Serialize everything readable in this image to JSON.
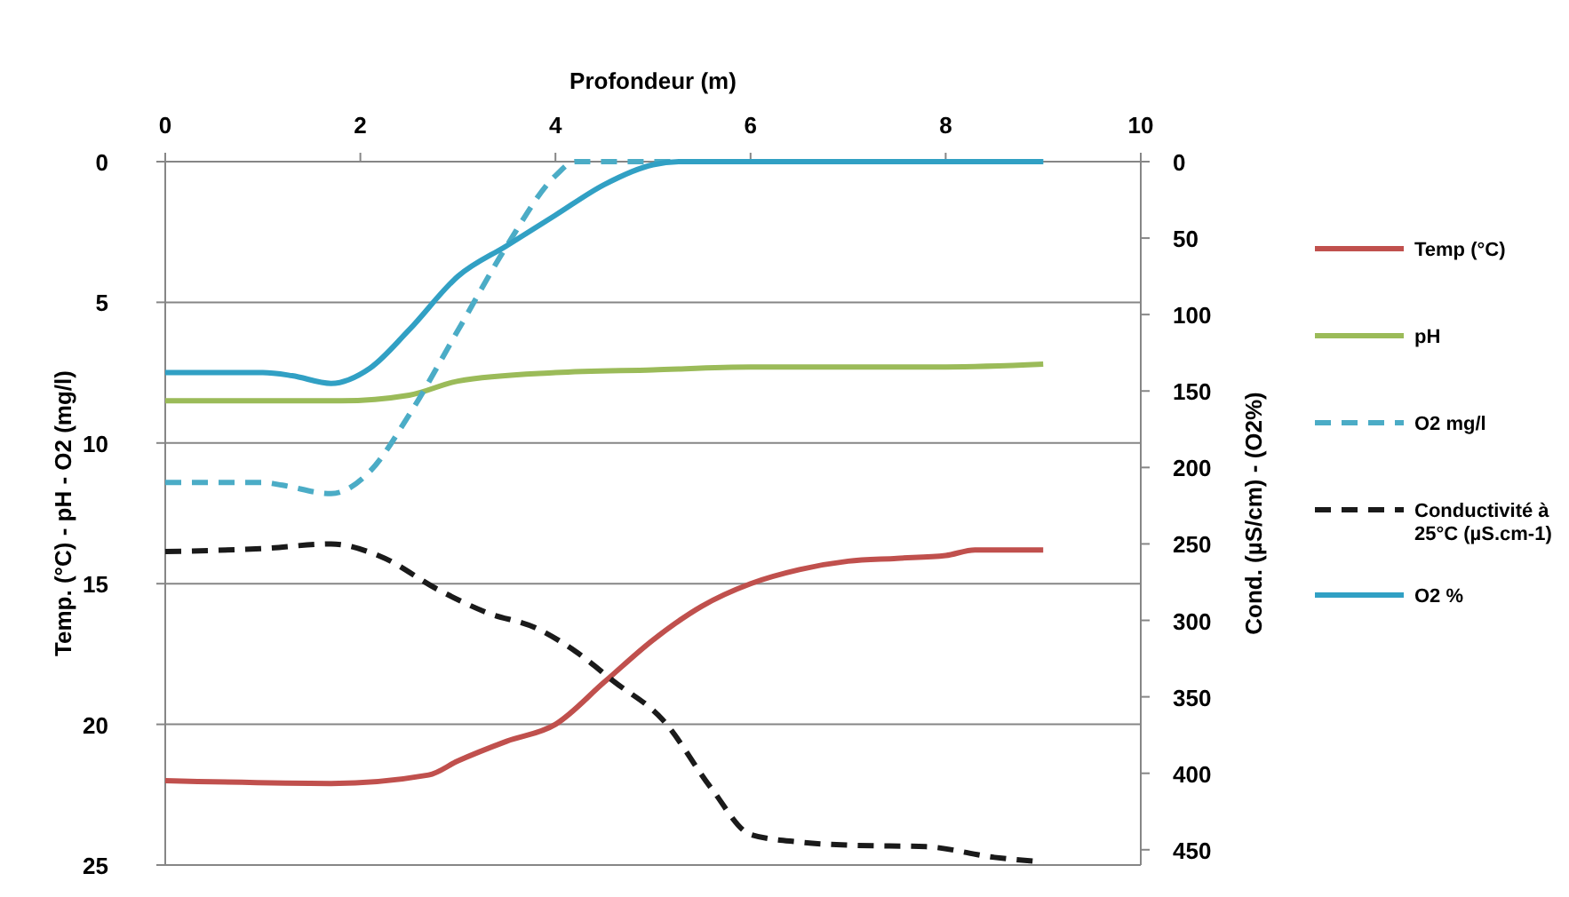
{
  "chart_data": {
    "type": "line",
    "xlabel": "Profondeur (m)",
    "ylabel": "Temp. (°C) - pH - O2 (mg/l)",
    "y2label": "Cond. (µS/cm) - (O2%)",
    "xlim": [
      0,
      10
    ],
    "xticks": [
      0,
      2,
      4,
      6,
      8,
      10
    ],
    "ylim": [
      25,
      0
    ],
    "yticks": [
      0,
      5,
      10,
      15,
      20,
      25
    ],
    "y2lim": [
      460,
      0
    ],
    "y2ticks": [
      0,
      50,
      100,
      150,
      200,
      250,
      300,
      350,
      400,
      450
    ],
    "grid": "y",
    "legend": "right",
    "marker": "none",
    "series": [
      {
        "name": "Temp (°C)",
        "color": "#c0504d",
        "line_style": "solid",
        "x": [
          0,
          1.7,
          2.7,
          3,
          3.5,
          4,
          4.5,
          5,
          5.5,
          6,
          6.5,
          7,
          7.5,
          8,
          8.3,
          9
        ],
        "values": [
          22,
          22.1,
          21.8,
          21.3,
          20.6,
          20,
          18.5,
          17,
          15.8,
          15,
          14.5,
          14.2,
          14.1,
          14,
          13.8,
          13.8
        ]
      },
      {
        "name": "pH",
        "color": "#9bbb59",
        "line_style": "solid",
        "x": [
          0,
          1.8,
          2.5,
          3,
          4,
          5,
          6,
          7,
          8,
          9
        ],
        "values": [
          8.5,
          8.5,
          8.3,
          7.8,
          7.5,
          7.4,
          7.3,
          7.3,
          7.3,
          7.2
        ]
      },
      {
        "name": "O2 mg/l",
        "color": "#4bacc6",
        "line_style": "dashed",
        "x": [
          0,
          1,
          1.2,
          1.7,
          2.1,
          2.5,
          3,
          3.5,
          4,
          4.2,
          5,
          6,
          7,
          8,
          9
        ],
        "values": [
          11.4,
          11.4,
          11.5,
          11.8,
          11,
          9,
          6,
          3,
          0.5,
          0,
          0,
          0,
          0,
          0,
          0
        ]
      },
      {
        "name": "Conductivité à 25°C (µS.cm-1)",
        "color": "#1a1a1a",
        "line_style": "dashed",
        "axis": "y2",
        "x": [
          0,
          1,
          1.7,
          2.2,
          2.8,
          3.3,
          3.8,
          4.2,
          4.6,
          5.1,
          5.6,
          6,
          6.5,
          7,
          7.8,
          8.5,
          9
        ],
        "values": [
          255,
          253,
          250,
          258,
          280,
          295,
          305,
          320,
          340,
          365,
          410,
          440,
          445,
          447,
          448,
          455,
          458
        ]
      },
      {
        "name": "O2 %",
        "color": "#31a0c4",
        "line_style": "solid",
        "axis": "y2",
        "x": [
          0,
          1,
          1.3,
          1.7,
          2.1,
          2.5,
          3,
          3.5,
          4,
          4.5,
          5,
          5.3,
          6,
          7,
          8,
          9
        ],
        "values": [
          138,
          138,
          140,
          145,
          135,
          110,
          75,
          55,
          35,
          15,
          2,
          0,
          0,
          0,
          0,
          0
        ]
      }
    ]
  }
}
